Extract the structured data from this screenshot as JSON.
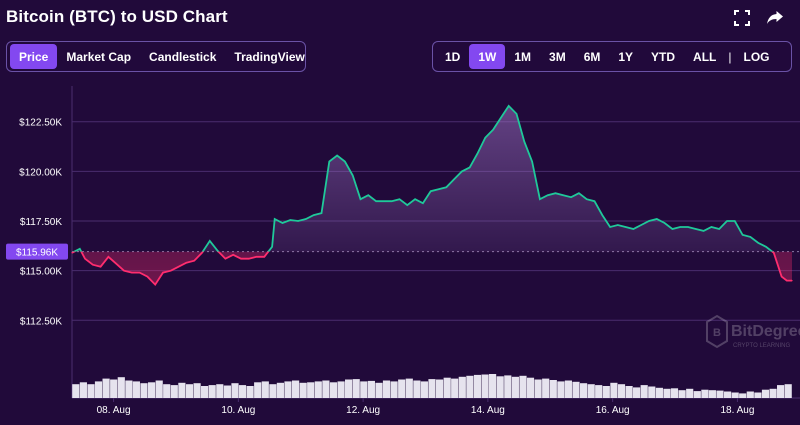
{
  "header": {
    "title": "Bitcoin (BTC) to USD Chart",
    "fullscreen_icon": "expand-icon",
    "share_icon": "share-arrow-icon"
  },
  "view_tabs": [
    {
      "label": "Price",
      "active": true
    },
    {
      "label": "Market Cap",
      "active": false
    },
    {
      "label": "Candlestick",
      "active": false
    },
    {
      "label": "TradingView",
      "active": false
    }
  ],
  "range_tabs": [
    {
      "label": "1D",
      "active": false
    },
    {
      "label": "1W",
      "active": true
    },
    {
      "label": "1M",
      "active": false
    },
    {
      "label": "3M",
      "active": false
    },
    {
      "label": "6M",
      "active": false
    },
    {
      "label": "1Y",
      "active": false
    },
    {
      "label": "YTD",
      "active": false
    },
    {
      "label": "ALL",
      "active": false
    }
  ],
  "log_label": "LOG",
  "separator": "|",
  "watermark": {
    "name": "BitDegree",
    "tagline": "CRYPTO LEARNING"
  },
  "colors": {
    "background": "#210a3a",
    "accent": "#8348f0",
    "up_line": "#1fc99a",
    "down_line": "#ff2d6e",
    "grid": "#4a2d6e",
    "volume": "#e6e3ee"
  },
  "chart_data": {
    "type": "line",
    "title": "",
    "xlabel": "",
    "ylabel": "",
    "ylim": [
      110400,
      124300
    ],
    "y_ticks": [
      112500,
      115000,
      117500,
      120000,
      122500
    ],
    "y_tick_labels": [
      "$112.50K",
      "$115.00K",
      "$117.50K",
      "$120.00K",
      "$122.50K"
    ],
    "x_range": [
      "2025-08-07T08:00",
      "2025-08-18T21:00"
    ],
    "x_ticks": [
      "2025-08-08",
      "2025-08-10",
      "2025-08-12",
      "2025-08-14",
      "2025-08-16",
      "2025-08-18"
    ],
    "x_tick_labels": [
      "08. Aug",
      "10. Aug",
      "12. Aug",
      "14. Aug",
      "16. Aug",
      "18. Aug"
    ],
    "baseline": 115960,
    "current_price_label": "$115.96K",
    "grid": "horizontal",
    "series": [
      {
        "x": [
          "2025-08-07T08:00",
          "2025-08-07T11:00",
          "2025-08-07T13:00",
          "2025-08-07T16:00",
          "2025-08-07T19:00",
          "2025-08-07T22:00",
          "2025-08-08T01:00",
          "2025-08-08T04:00",
          "2025-08-08T07:00",
          "2025-08-08T10:00",
          "2025-08-08T13:00",
          "2025-08-08T16:00",
          "2025-08-08T19:00",
          "2025-08-08T22:00",
          "2025-08-09T01:00",
          "2025-08-09T04:00",
          "2025-08-09T07:00",
          "2025-08-09T10:00",
          "2025-08-09T13:00",
          "2025-08-09T16:00",
          "2025-08-09T19:00",
          "2025-08-09T22:00",
          "2025-08-10T01:00",
          "2025-08-10T04:00",
          "2025-08-10T07:00",
          "2025-08-10T10:00",
          "2025-08-10T13:00",
          "2025-08-10T14:00",
          "2025-08-10T17:00",
          "2025-08-10T20:00",
          "2025-08-10T23:00",
          "2025-08-11T02:00",
          "2025-08-11T05:00",
          "2025-08-11T08:00",
          "2025-08-11T11:00",
          "2025-08-11T14:00",
          "2025-08-11T17:00",
          "2025-08-11T20:00",
          "2025-08-11T23:00",
          "2025-08-12T02:00",
          "2025-08-12T05:00",
          "2025-08-12T08:00",
          "2025-08-12T11:00",
          "2025-08-12T14:00",
          "2025-08-12T17:00",
          "2025-08-12T20:00",
          "2025-08-12T23:00",
          "2025-08-13T02:00",
          "2025-08-13T05:00",
          "2025-08-13T08:00",
          "2025-08-13T11:00",
          "2025-08-13T14:00",
          "2025-08-13T17:00",
          "2025-08-13T20:00",
          "2025-08-13T23:00",
          "2025-08-14T02:00",
          "2025-08-14T05:00",
          "2025-08-14T08:00",
          "2025-08-14T11:00",
          "2025-08-14T14:00",
          "2025-08-14T17:00",
          "2025-08-14T20:00",
          "2025-08-14T23:00",
          "2025-08-15T02:00",
          "2025-08-15T05:00",
          "2025-08-15T08:00",
          "2025-08-15T11:00",
          "2025-08-15T14:00",
          "2025-08-15T17:00",
          "2025-08-15T20:00",
          "2025-08-15T23:00",
          "2025-08-16T02:00",
          "2025-08-16T05:00",
          "2025-08-16T08:00",
          "2025-08-16T11:00",
          "2025-08-16T14:00",
          "2025-08-16T17:00",
          "2025-08-16T20:00",
          "2025-08-16T23:00",
          "2025-08-17T02:00",
          "2025-08-17T05:00",
          "2025-08-17T08:00",
          "2025-08-17T11:00",
          "2025-08-17T14:00",
          "2025-08-17T17:00",
          "2025-08-17T20:00",
          "2025-08-17T23:00",
          "2025-08-18T02:00",
          "2025-08-18T05:00",
          "2025-08-18T08:00",
          "2025-08-18T11:00",
          "2025-08-18T14:00",
          "2025-08-18T17:00",
          "2025-08-18T19:00",
          "2025-08-18T21:00"
        ],
        "y": [
          115900,
          116100,
          115600,
          115300,
          115200,
          115700,
          115350,
          115000,
          114900,
          114900,
          114700,
          114300,
          114900,
          115000,
          115200,
          115400,
          115500,
          115900,
          116500,
          116000,
          115600,
          115800,
          115600,
          115600,
          115700,
          115700,
          116200,
          117600,
          117400,
          117550,
          117500,
          117600,
          117800,
          117900,
          120500,
          120800,
          120500,
          119800,
          118600,
          118800,
          118500,
          118500,
          118500,
          118600,
          118300,
          118600,
          118400,
          119000,
          119100,
          119200,
          119600,
          120000,
          120200,
          120900,
          121700,
          122100,
          122700,
          123300,
          122900,
          121500,
          120500,
          118600,
          118800,
          118900,
          118800,
          118700,
          118900,
          118600,
          118500,
          117800,
          117200,
          117300,
          117200,
          117100,
          117300,
          117500,
          117600,
          117400,
          117100,
          117200,
          117200,
          117100,
          117000,
          117200,
          117100,
          117500,
          117500,
          116800,
          116700,
          116400,
          116200,
          115900,
          114700,
          114500,
          114500
        ]
      }
    ],
    "volume": [
      30,
      34,
      30,
      36,
      42,
      40,
      45,
      38,
      36,
      32,
      34,
      38,
      30,
      28,
      33,
      30,
      32,
      26,
      28,
      30,
      27,
      32,
      28,
      26,
      34,
      36,
      30,
      33,
      36,
      38,
      33,
      34,
      36,
      38,
      34,
      36,
      40,
      41,
      36,
      37,
      33,
      38,
      36,
      40,
      42,
      38,
      36,
      41,
      40,
      44,
      42,
      46,
      48,
      50,
      51,
      52,
      47,
      49,
      46,
      48,
      44,
      40,
      42,
      39,
      36,
      38,
      35,
      32,
      30,
      28,
      26,
      33,
      30,
      26,
      23,
      28,
      25,
      22,
      20,
      21,
      17,
      20,
      15,
      18,
      17,
      16,
      14,
      12,
      10,
      14,
      12,
      18,
      20,
      28,
      30
    ]
  }
}
